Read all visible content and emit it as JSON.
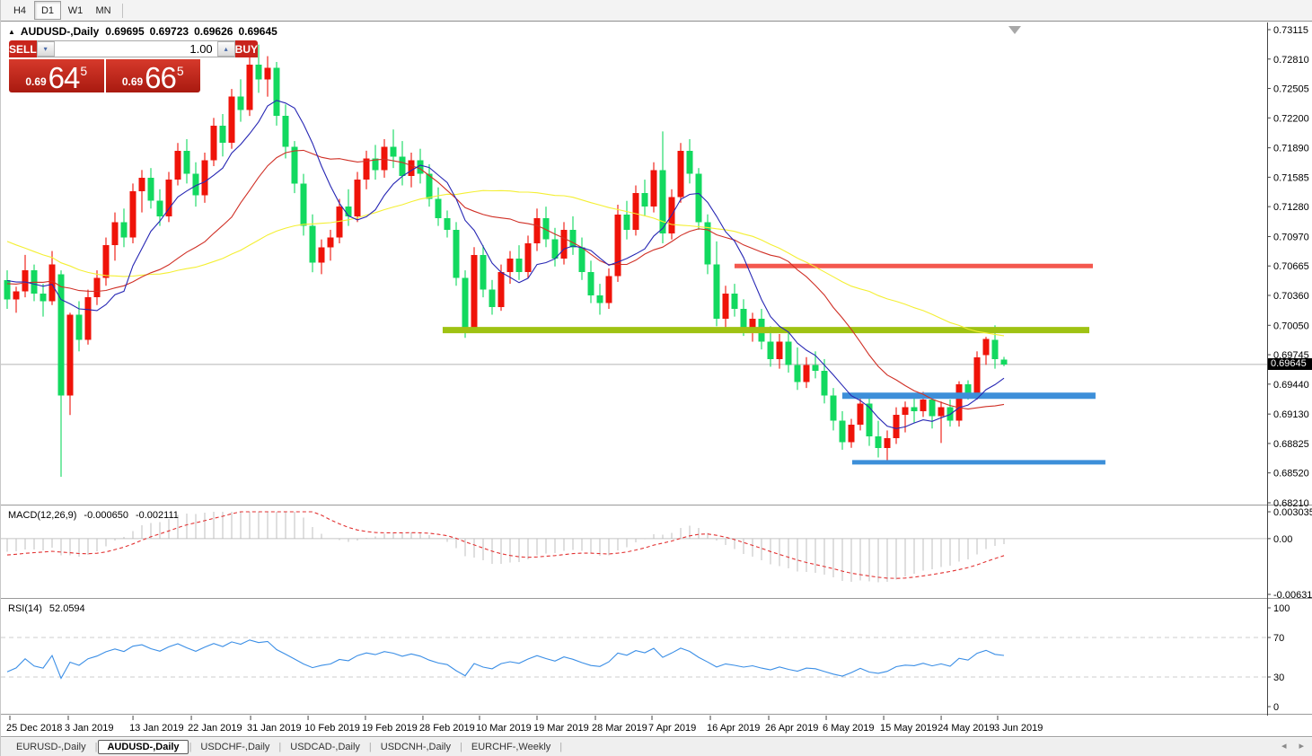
{
  "toolbar": {
    "timeframes": [
      "H4",
      "D1",
      "W1",
      "MN"
    ],
    "active": "D1"
  },
  "title": {
    "symbol": "AUDUSD-,Daily",
    "open": "0.69695",
    "high": "0.69723",
    "low": "0.69626",
    "close": "0.69645"
  },
  "trade_panel": {
    "sell_label": "SELL",
    "buy_label": "BUY",
    "volume": "1.00",
    "sell_price": {
      "prefix": "0.69",
      "big": "64",
      "sup": "5"
    },
    "buy_price": {
      "prefix": "0.69",
      "big": "66",
      "sup": "5"
    }
  },
  "price_axis": {
    "labels": [
      "0.73115",
      "0.72810",
      "0.72505",
      "0.72200",
      "0.71890",
      "0.71585",
      "0.71280",
      "0.70970",
      "0.70665",
      "0.70360",
      "0.70050",
      "0.69745",
      "0.69440",
      "0.69130",
      "0.68825",
      "0.68520",
      "0.68210"
    ],
    "current": {
      "text": "0.69645",
      "value": 0.69645
    }
  },
  "date_axis": [
    {
      "label": "25 Dec 2018",
      "xf": 0.0071
    },
    {
      "label": "3 Jan 2019",
      "xf": 0.0532
    },
    {
      "label": "13 Jan 2019",
      "xf": 0.1043
    },
    {
      "label": "22 Jan 2019",
      "xf": 0.1504
    },
    {
      "label": "31 Jan 2019",
      "xf": 0.1972
    },
    {
      "label": "10 Feb 2019",
      "xf": 0.2426
    },
    {
      "label": "19 Feb 2019",
      "xf": 0.2879
    },
    {
      "label": "28 Feb 2019",
      "xf": 0.3333
    },
    {
      "label": "10 Mar 2019",
      "xf": 0.378
    },
    {
      "label": "19 Mar 2019",
      "xf": 0.4234
    },
    {
      "label": "28 Mar 2019",
      "xf": 0.4695
    },
    {
      "label": "7 Apr 2019",
      "xf": 0.5142
    },
    {
      "label": "16 Apr 2019",
      "xf": 0.5603
    },
    {
      "label": "26 Apr 2019",
      "xf": 0.6064
    },
    {
      "label": "6 May 2019",
      "xf": 0.6518
    },
    {
      "label": "15 May 2019",
      "xf": 0.6972
    },
    {
      "label": "24 May 2019",
      "xf": 0.7426
    },
    {
      "label": "3 Jun 2019",
      "xf": 0.7872
    }
  ],
  "tabs": {
    "items": [
      "EURUSD-,Daily",
      "AUDUSD-,Daily",
      "USDCHF-,Daily",
      "USDCAD-,Daily",
      "USDCNH-,Daily",
      "EURCHF-,Weekly"
    ],
    "active": "AUDUSD-,Daily"
  },
  "indicators": {
    "macd": {
      "label": "MACD(12,26,9)",
      "value1": "-0.000650",
      "value2": "-0.002111",
      "axis": [
        {
          "text": "0.003035",
          "value": 0.003035
        },
        {
          "text": "0.00",
          "value": 0
        },
        {
          "text": "-0.006311",
          "value": -0.006311
        }
      ],
      "histogram_color": "#bfbfbf",
      "signal_color": "#e23131"
    },
    "rsi": {
      "label": "RSI(14)",
      "value": "52.0594",
      "axis": [
        {
          "text": "100",
          "value": 100
        },
        {
          "text": "70",
          "value": 70
        },
        {
          "text": "30",
          "value": 30
        },
        {
          "text": "0",
          "value": 0
        }
      ],
      "levels": [
        70,
        30
      ],
      "line_color": "#3a8ee6"
    }
  },
  "chart_data": {
    "type": "candlestick",
    "symbol": "AUDUSD",
    "timeframe": "Daily",
    "colors": {
      "up": "#ef1309",
      "down": "#12d95f",
      "ma_fast": "#2727b4",
      "ma_mid": "#d03026",
      "ma_slow": "#f4ef33",
      "bid_line": "#b5b5b5"
    },
    "price_axis_anchor": {
      "top_price": 0.73115,
      "bottom_price": 0.6821
    },
    "ma_periods": {
      "fast": 8,
      "mid": 20,
      "slow": 45
    },
    "bid_price": 0.69645,
    "hlines": [
      {
        "price": 0.70665,
        "x1f": 0.5794,
        "x2f": 0.8624,
        "color": "#f4584e",
        "width": 5
      },
      {
        "price": 0.7,
        "x1f": 0.3489,
        "x2f": 0.8596,
        "color": "#9fc213",
        "width": 7
      },
      {
        "price": 0.6932,
        "x1f": 0.6645,
        "x2f": 0.8645,
        "color": "#3d8fd9",
        "width": 7
      },
      {
        "price": 0.6863,
        "x1f": 0.6723,
        "x2f": 0.8723,
        "color": "#3d8fd9",
        "width": 5
      }
    ],
    "prehistory_closes": [
      0.728,
      0.7272,
      0.7265,
      0.727,
      0.7258,
      0.7246,
      0.7252,
      0.724,
      0.7228,
      0.7232,
      0.722,
      0.7205,
      0.7212,
      0.7198,
      0.7185,
      0.719,
      0.7178,
      0.7162,
      0.717,
      0.7155,
      0.714,
      0.7148,
      0.7132,
      0.712,
      0.7126,
      0.7112,
      0.7098,
      0.7105,
      0.709,
      0.7078,
      0.7085,
      0.707,
      0.7058,
      0.7066,
      0.7052,
      0.704,
      0.7048,
      0.7036,
      0.7025,
      0.7032,
      0.7042,
      0.7052,
      0.7045,
      0.7038,
      0.7048,
      0.7058,
      0.7068,
      0.706,
      0.7052,
      0.7062,
      0.7055,
      0.7048,
      0.7052,
      0.7058,
      0.7052
    ],
    "candles": [
      [
        0.7052,
        0.7062,
        0.7022,
        0.7032
      ],
      [
        0.7032,
        0.7045,
        0.7018,
        0.704
      ],
      [
        0.704,
        0.7078,
        0.7034,
        0.7062
      ],
      [
        0.7062,
        0.7068,
        0.703,
        0.7038
      ],
      [
        0.7038,
        0.7048,
        0.7014,
        0.703
      ],
      [
        0.703,
        0.7082,
        0.7026,
        0.7068
      ],
      [
        0.7058,
        0.7062,
        0.6848,
        0.6932
      ],
      [
        0.6932,
        0.7018,
        0.6912,
        0.7016
      ],
      [
        0.7016,
        0.703,
        0.6978,
        0.699
      ],
      [
        0.699,
        0.7042,
        0.6985,
        0.7034
      ],
      [
        0.7034,
        0.7062,
        0.7026,
        0.7054
      ],
      [
        0.7054,
        0.7096,
        0.7046,
        0.7088
      ],
      [
        0.7088,
        0.7122,
        0.7072,
        0.7112
      ],
      [
        0.7112,
        0.7126,
        0.7086,
        0.7096
      ],
      [
        0.7096,
        0.7152,
        0.709,
        0.7144
      ],
      [
        0.7144,
        0.7166,
        0.7122,
        0.7158
      ],
      [
        0.7158,
        0.7168,
        0.7126,
        0.7134
      ],
      [
        0.7134,
        0.7146,
        0.7108,
        0.7118
      ],
      [
        0.7118,
        0.7164,
        0.7112,
        0.7156
      ],
      [
        0.7156,
        0.7194,
        0.715,
        0.7186
      ],
      [
        0.7186,
        0.7198,
        0.7152,
        0.7162
      ],
      [
        0.7162,
        0.7174,
        0.7128,
        0.714
      ],
      [
        0.714,
        0.7184,
        0.7132,
        0.7176
      ],
      [
        0.7176,
        0.722,
        0.717,
        0.7212
      ],
      [
        0.7212,
        0.7224,
        0.718,
        0.7194
      ],
      [
        0.7194,
        0.725,
        0.7188,
        0.7242
      ],
      [
        0.7242,
        0.726,
        0.7216,
        0.7228
      ],
      [
        0.7228,
        0.7287,
        0.7222,
        0.7275
      ],
      [
        0.7275,
        0.7296,
        0.7246,
        0.726
      ],
      [
        0.726,
        0.7284,
        0.7242,
        0.7272
      ],
      [
        0.7272,
        0.7278,
        0.7212,
        0.7222
      ],
      [
        0.7222,
        0.7234,
        0.7178,
        0.719
      ],
      [
        0.719,
        0.7196,
        0.7142,
        0.7152
      ],
      [
        0.7152,
        0.7162,
        0.7098,
        0.7108
      ],
      [
        0.7108,
        0.712,
        0.706,
        0.707
      ],
      [
        0.707,
        0.7094,
        0.7058,
        0.7086
      ],
      [
        0.7086,
        0.7104,
        0.7072,
        0.7096
      ],
      [
        0.7096,
        0.7136,
        0.709,
        0.7128
      ],
      [
        0.7128,
        0.7146,
        0.7108,
        0.7118
      ],
      [
        0.7118,
        0.7164,
        0.7112,
        0.7156
      ],
      [
        0.7156,
        0.7186,
        0.7146,
        0.7178
      ],
      [
        0.7178,
        0.7192,
        0.7156,
        0.7166
      ],
      [
        0.7166,
        0.7198,
        0.7158,
        0.719
      ],
      [
        0.719,
        0.7208,
        0.7168,
        0.718
      ],
      [
        0.718,
        0.7196,
        0.715,
        0.716
      ],
      [
        0.716,
        0.7184,
        0.7148,
        0.7176
      ],
      [
        0.7176,
        0.7188,
        0.7152,
        0.7162
      ],
      [
        0.7162,
        0.7172,
        0.7128,
        0.7136
      ],
      [
        0.7136,
        0.7148,
        0.7108,
        0.7116
      ],
      [
        0.7116,
        0.7124,
        0.7096,
        0.7104
      ],
      [
        0.7104,
        0.7112,
        0.7046,
        0.7054
      ],
      [
        0.7054,
        0.7062,
        0.6992,
        0.7002
      ],
      [
        0.7002,
        0.7086,
        0.6998,
        0.7078
      ],
      [
        0.7078,
        0.7088,
        0.7034,
        0.7042
      ],
      [
        0.7042,
        0.7052,
        0.7016,
        0.7024
      ],
      [
        0.7024,
        0.7068,
        0.702,
        0.706
      ],
      [
        0.706,
        0.7082,
        0.7048,
        0.7074
      ],
      [
        0.7074,
        0.7088,
        0.7052,
        0.706
      ],
      [
        0.706,
        0.7098,
        0.7054,
        0.709
      ],
      [
        0.709,
        0.7126,
        0.7082,
        0.7116
      ],
      [
        0.7116,
        0.7128,
        0.7086,
        0.7094
      ],
      [
        0.7094,
        0.7106,
        0.7066,
        0.7074
      ],
      [
        0.7074,
        0.7112,
        0.7068,
        0.7104
      ],
      [
        0.7104,
        0.7118,
        0.7078,
        0.7086
      ],
      [
        0.7086,
        0.7096,
        0.7052,
        0.706
      ],
      [
        0.706,
        0.7072,
        0.7028,
        0.7036
      ],
      [
        0.7036,
        0.7048,
        0.7016,
        0.7028
      ],
      [
        0.7028,
        0.7064,
        0.7022,
        0.7056
      ],
      [
        0.7056,
        0.713,
        0.705,
        0.712
      ],
      [
        0.712,
        0.7134,
        0.7094,
        0.7104
      ],
      [
        0.7104,
        0.715,
        0.7098,
        0.7142
      ],
      [
        0.7142,
        0.7156,
        0.7118,
        0.7128
      ],
      [
        0.7128,
        0.7174,
        0.7122,
        0.7166
      ],
      [
        0.7166,
        0.7206,
        0.709,
        0.71
      ],
      [
        0.71,
        0.7146,
        0.7094,
        0.7138
      ],
      [
        0.7138,
        0.7194,
        0.7132,
        0.7186
      ],
      [
        0.7186,
        0.7198,
        0.7152,
        0.7162
      ],
      [
        0.7162,
        0.7168,
        0.7104,
        0.7112
      ],
      [
        0.7112,
        0.712,
        0.7058,
        0.7068
      ],
      [
        0.7068,
        0.7092,
        0.7004,
        0.7012
      ],
      [
        0.7012,
        0.7046,
        0.7,
        0.7038
      ],
      [
        0.7038,
        0.7048,
        0.7014,
        0.7022
      ],
      [
        0.7022,
        0.7032,
        0.6994,
        0.7002
      ],
      [
        0.7002,
        0.7018,
        0.6988,
        0.7012
      ],
      [
        0.7012,
        0.7022,
        0.698,
        0.6988
      ],
      [
        0.6988,
        0.7004,
        0.6962,
        0.697
      ],
      [
        0.697,
        0.6996,
        0.696,
        0.6988
      ],
      [
        0.6988,
        0.6998,
        0.6956,
        0.6964
      ],
      [
        0.6964,
        0.6982,
        0.6938,
        0.6946
      ],
      [
        0.6946,
        0.6972,
        0.694,
        0.6964
      ],
      [
        0.6964,
        0.6978,
        0.695,
        0.6958
      ],
      [
        0.6958,
        0.697,
        0.6924,
        0.6932
      ],
      [
        0.6932,
        0.694,
        0.6896,
        0.6906
      ],
      [
        0.6906,
        0.6916,
        0.6876,
        0.6884
      ],
      [
        0.6884,
        0.6908,
        0.6878,
        0.6902
      ],
      [
        0.6902,
        0.6932,
        0.6896,
        0.6924
      ],
      [
        0.6924,
        0.693,
        0.688,
        0.689
      ],
      [
        0.689,
        0.6906,
        0.6868,
        0.6878
      ],
      [
        0.6878,
        0.6896,
        0.6864,
        0.6888
      ],
      [
        0.6888,
        0.692,
        0.6882,
        0.6912
      ],
      [
        0.6912,
        0.6926,
        0.6894,
        0.692
      ],
      [
        0.692,
        0.6932,
        0.6904,
        0.6916
      ],
      [
        0.6916,
        0.6936,
        0.691,
        0.6928
      ],
      [
        0.6928,
        0.6934,
        0.6898,
        0.6911
      ],
      [
        0.6911,
        0.6926,
        0.6883,
        0.692
      ],
      [
        0.692,
        0.6928,
        0.69,
        0.6906
      ],
      [
        0.6906,
        0.6947,
        0.69,
        0.6944
      ],
      [
        0.6944,
        0.6948,
        0.6928,
        0.6934
      ],
      [
        0.6932,
        0.6978,
        0.6928,
        0.6972
      ],
      [
        0.6974,
        0.6993,
        0.6964,
        0.6991
      ],
      [
        0.699,
        0.7005,
        0.696,
        0.697
      ],
      [
        0.69695,
        0.69723,
        0.69626,
        0.69645
      ]
    ]
  }
}
